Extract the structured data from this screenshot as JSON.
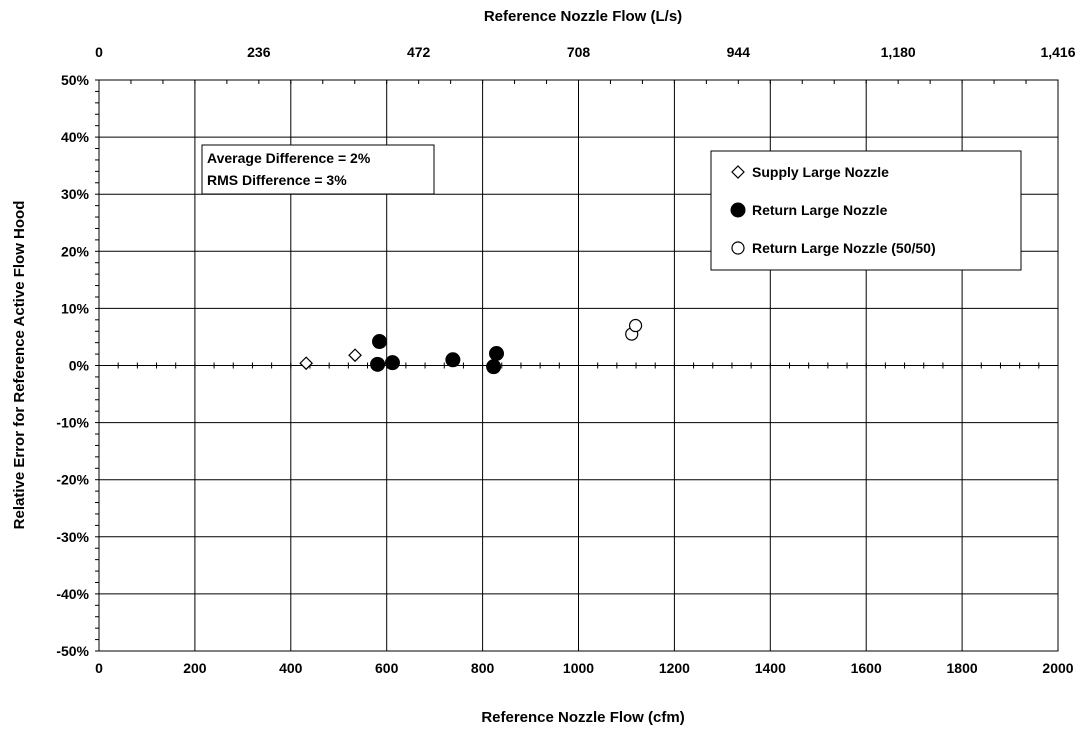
{
  "chart_data": {
    "type": "scatter",
    "title": "",
    "xlabel": "Reference Nozzle Flow (cfm)",
    "x2label": "Reference Nozzle Flow (L/s)",
    "ylabel": "Relative Error for Reference Active Flow Hood",
    "xlim": [
      0,
      2000
    ],
    "ylim": [
      -0.5,
      0.5
    ],
    "x_ticks": [
      0,
      200,
      400,
      600,
      800,
      1000,
      1200,
      1400,
      1600,
      1800,
      2000
    ],
    "x_tick_labels": [
      "0",
      "200",
      "400",
      "600",
      "800",
      "1000",
      "1200",
      "1400",
      "1600",
      "1800",
      "2000"
    ],
    "x2_ticks": [
      0,
      333.33,
      666.67,
      1000,
      1333.33,
      1666.67,
      2000
    ],
    "x2_tick_labels": [
      "0",
      "236",
      "472",
      "708",
      "944",
      "1,180",
      "1,416"
    ],
    "y_ticks": [
      -0.5,
      -0.4,
      -0.3,
      -0.2,
      -0.1,
      0,
      0.1,
      0.2,
      0.3,
      0.4,
      0.5
    ],
    "y_tick_labels": [
      "-50%",
      "-40%",
      "-30%",
      "-20%",
      "-10%",
      "0%",
      "10%",
      "20%",
      "30%",
      "40%",
      "50%"
    ],
    "grid": true,
    "legend_position": "upper-right",
    "annotation": {
      "lines": [
        "Average Difference = 2%",
        "RMS Difference = 3%"
      ]
    },
    "series": [
      {
        "name": "Supply Large Nozzle",
        "marker": "diamond-open",
        "points": [
          {
            "x": 432,
            "y": 0.004
          },
          {
            "x": 534,
            "y": 0.018
          }
        ]
      },
      {
        "name": "Return Large Nozzle",
        "marker": "circle-filled",
        "points": [
          {
            "x": 585,
            "y": 0.042
          },
          {
            "x": 581,
            "y": 0.002
          },
          {
            "x": 612,
            "y": 0.005
          },
          {
            "x": 738,
            "y": 0.01
          },
          {
            "x": 823,
            "y": -0.002
          },
          {
            "x": 829,
            "y": 0.021
          }
        ]
      },
      {
        "name": "Return Large Nozzle (50/50)",
        "marker": "circle-open",
        "points": [
          {
            "x": 1111,
            "y": 0.055
          },
          {
            "x": 1119,
            "y": 0.07
          }
        ]
      }
    ]
  }
}
